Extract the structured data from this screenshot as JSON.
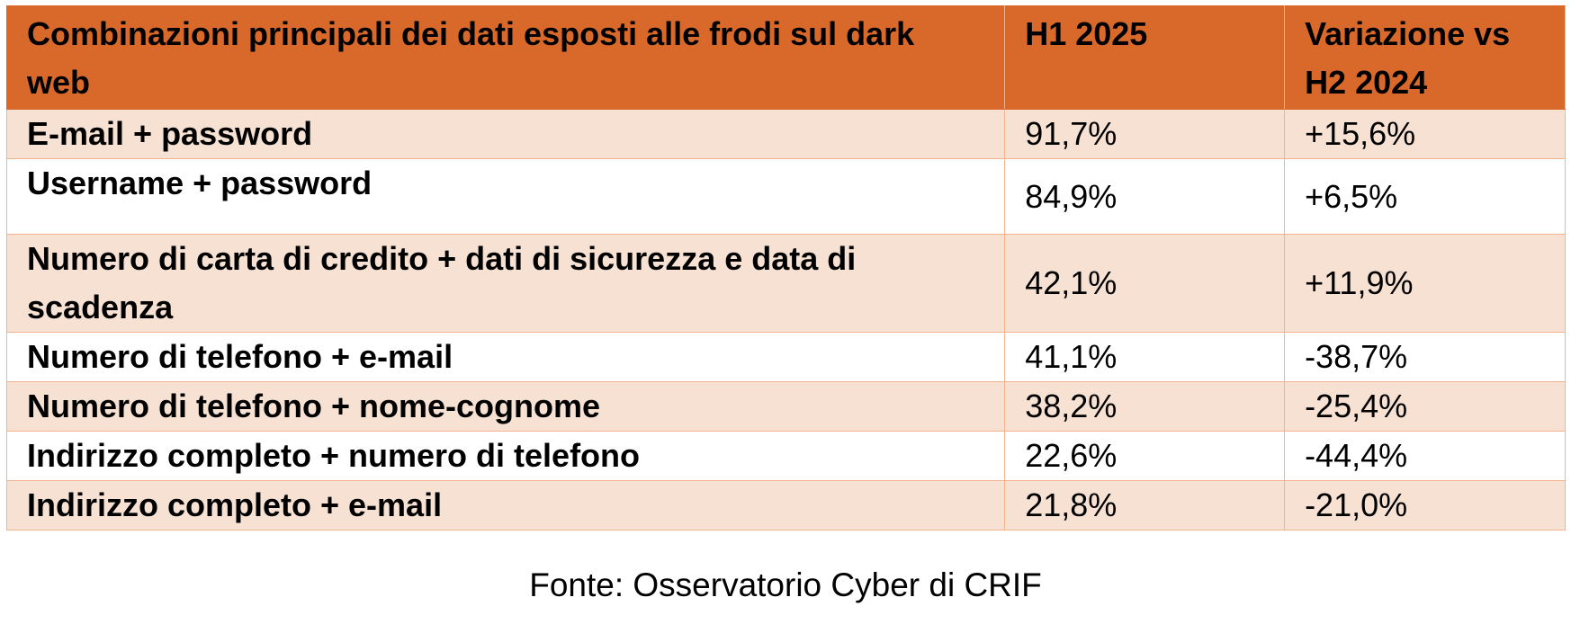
{
  "table": {
    "headers": [
      "Combinazioni principali dei dati esposti alle frodi sul dark web",
      "H1 2025",
      "Variazione vs H2 2024"
    ],
    "rows": [
      {
        "combo": "E-mail + password",
        "h1_2025": "91,7%",
        "variation": "+15,6%"
      },
      {
        "combo": "Username + password",
        "h1_2025": "84,9%",
        "variation": "+6,5%"
      },
      {
        "combo": "Numero di carta di credito + dati di sicurezza e data di scadenza",
        "h1_2025": "42,1%",
        "variation": "+11,9%"
      },
      {
        "combo": "Numero di telefono + e-mail",
        "h1_2025": "41,1%",
        "variation": "-38,7%"
      },
      {
        "combo": "Numero di telefono + nome-cognome",
        "h1_2025": "38,2%",
        "variation": "-25,4%"
      },
      {
        "combo": "Indirizzo completo + numero di telefono",
        "h1_2025": "22,6%",
        "variation": "-44,4%"
      },
      {
        "combo": "Indirizzo completo + e-mail",
        "h1_2025": "21,8%",
        "variation": "-21,0%"
      }
    ]
  },
  "source": "Fonte: Osservatorio Cyber di CRIF",
  "colors": {
    "header_bg": "#d9692b",
    "shaded_row_bg": "#f6e1d3",
    "border": "#f2b48f"
  }
}
